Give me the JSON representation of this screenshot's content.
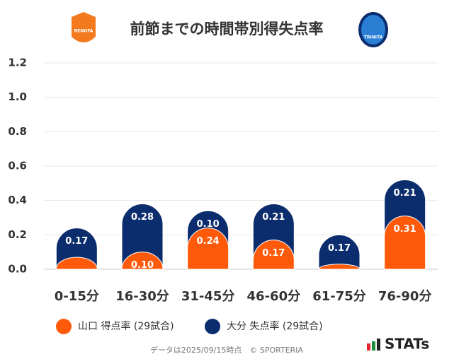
{
  "chart_data": {
    "type": "bar",
    "stacked": true,
    "title": "前節までの時間帯別得失点率",
    "logos": {
      "left": "RENOFA",
      "right": "TRINITA"
    },
    "categories": [
      "0-15分",
      "16-30分",
      "31-45分",
      "46-60分",
      "61-75分",
      "76-90分"
    ],
    "series": [
      {
        "name": "山口 得点率 (29試合)",
        "color": "#ff5a0a",
        "values": [
          0.07,
          0.1,
          0.24,
          0.17,
          0.03,
          0.31
        ],
        "value_labels": [
          null,
          "0.10",
          "0.24",
          "0.17",
          null,
          "0.31"
        ]
      },
      {
        "name": "大分 失点率 (29試合)",
        "color": "#0b2d6e",
        "values": [
          0.17,
          0.28,
          0.1,
          0.21,
          0.17,
          0.21
        ],
        "value_labels": [
          "0.17",
          "0.28",
          "0.10",
          "0.21",
          "0.17",
          "0.21"
        ]
      }
    ],
    "ylim": [
      0,
      1.2
    ],
    "yticks": [
      {
        "value": 0,
        "label": "0.0"
      },
      0.2,
      0.4,
      0.6,
      0.8,
      {
        "value": 1,
        "label": "1.0"
      },
      1.2
    ],
    "grid": true,
    "footer": "データは2025/09/15時点　© SPORTERIA",
    "brand": "STATs"
  }
}
